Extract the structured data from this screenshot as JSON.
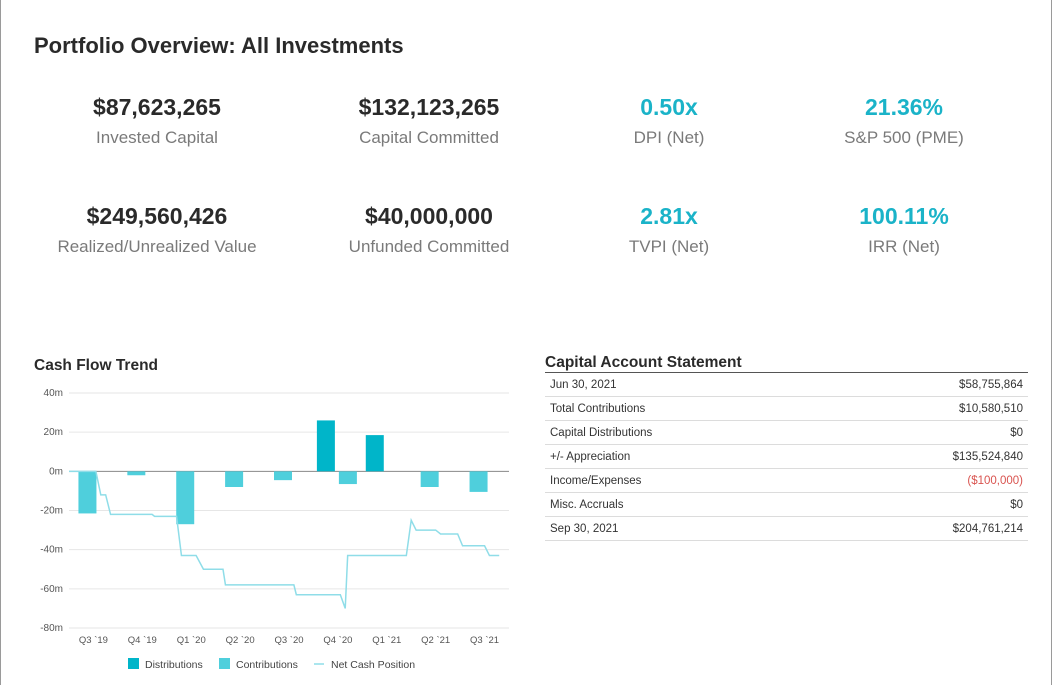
{
  "page": {
    "title": "Portfolio Overview: All Investments"
  },
  "kpis": [
    {
      "value": "$87,623,265",
      "label": "Invested Capital"
    },
    {
      "value": "$132,123,265",
      "label": "Capital Committed"
    },
    {
      "value": "0.50x",
      "label": "DPI (Net)"
    },
    {
      "value": "21.36%",
      "label": "S&P 500 (PME)"
    },
    {
      "value": "$249,560,426",
      "label": "Realized/Unrealized Value"
    },
    {
      "value": "$40,000,000",
      "label": "Unfunded Committed"
    },
    {
      "value": "2.81x",
      "label": "TVPI (Net)"
    },
    {
      "value": "100.11%",
      "label": "IRR (Net)"
    }
  ],
  "cash_flow": {
    "title": "Cash Flow Trend"
  },
  "statement": {
    "title": "Capital Account Statement",
    "rows": [
      {
        "label": "Jun 30, 2021",
        "value": "$58,755,864"
      },
      {
        "label": "Total Contributions",
        "value": "$10,580,510"
      },
      {
        "label": "Capital Distributions",
        "value": "$0"
      },
      {
        "label": "+/- Appreciation",
        "value": "$135,524,840"
      },
      {
        "label": "Income/Expenses",
        "value": "($100,000)"
      },
      {
        "label": "Misc. Accruals",
        "value": "$0"
      },
      {
        "label": "Sep 30, 2021",
        "value": "$204,761,214"
      }
    ]
  },
  "colors": {
    "accent": "#1ab3c8",
    "distributions": "#00b5c9",
    "contributions": "#4fcfdc",
    "net_line": "#8fdde8",
    "negative": "#d9534f"
  },
  "chart_data": {
    "type": "bar",
    "xlabel": "",
    "ylabel": "",
    "ylim": [
      -80,
      40
    ],
    "yticks": [
      "40m",
      "20m",
      "0m",
      "-20m",
      "-40m",
      "-60m",
      "-80m"
    ],
    "ytick_values": [
      40,
      20,
      0,
      -20,
      -40,
      -60,
      -80
    ],
    "categories": [
      "Q3 `19",
      "Q4 `19",
      "Q1 `20",
      "Q2 `20",
      "Q3 `20",
      "Q4 `20",
      "Q1 `21",
      "Q2 `21",
      "Q3 `21"
    ],
    "series": [
      {
        "name": "Distributions",
        "type": "bar",
        "values": [
          0,
          0,
          0,
          0,
          0,
          26,
          18.5,
          0,
          0
        ]
      },
      {
        "name": "Contributions",
        "type": "bar",
        "values": [
          -21.5,
          -2,
          -27,
          -8,
          -4.5,
          -6.5,
          0,
          -8,
          -10.5
        ]
      },
      {
        "name": "Net Cash Position",
        "type": "line",
        "points": [
          [
            0,
            0
          ],
          [
            0.55,
            0
          ],
          [
            0.65,
            -12
          ],
          [
            0.75,
            -12
          ],
          [
            0.85,
            -22
          ],
          [
            1.7,
            -22
          ],
          [
            1.75,
            -23
          ],
          [
            2.2,
            -23
          ],
          [
            2.3,
            -43
          ],
          [
            2.6,
            -43
          ],
          [
            2.75,
            -50
          ],
          [
            3.15,
            -50
          ],
          [
            3.2,
            -58
          ],
          [
            4.6,
            -58
          ],
          [
            4.65,
            -63
          ],
          [
            5.55,
            -63
          ],
          [
            5.65,
            -70
          ],
          [
            5.7,
            -43
          ],
          [
            6.9,
            -43
          ],
          [
            7.0,
            -25
          ],
          [
            7.1,
            -30
          ],
          [
            7.5,
            -30
          ],
          [
            7.6,
            -32
          ],
          [
            7.95,
            -32
          ],
          [
            8.05,
            -38
          ],
          [
            8.5,
            -38
          ],
          [
            8.6,
            -43
          ],
          [
            8.8,
            -43
          ]
        ]
      }
    ],
    "legend": "bottom",
    "grid": true
  }
}
